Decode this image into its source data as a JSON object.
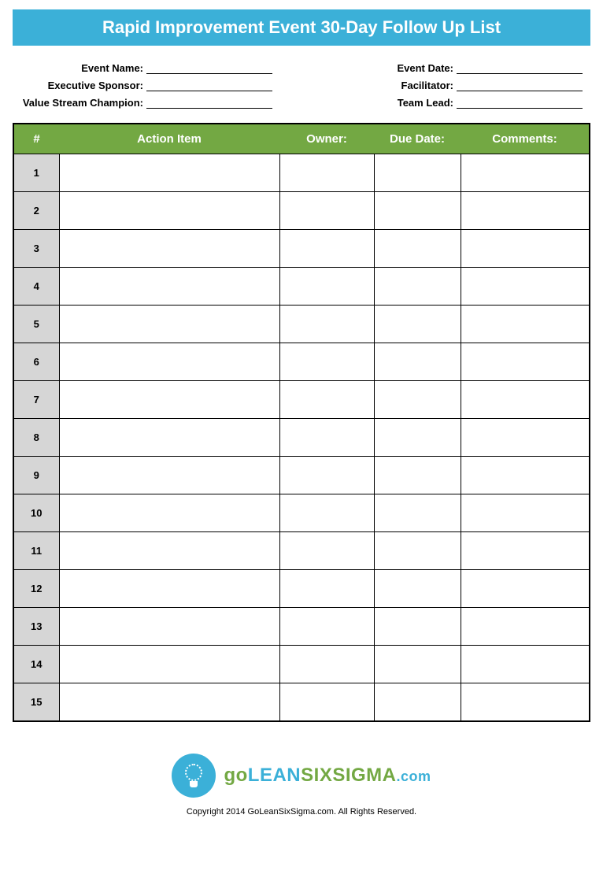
{
  "title": "Rapid Improvement Event 30-Day Follow Up List",
  "meta": {
    "left": [
      {
        "label": "Event Name:",
        "value": ""
      },
      {
        "label": "Executive Sponsor:",
        "value": ""
      },
      {
        "label": "Value Stream Champion:",
        "value": ""
      }
    ],
    "right": [
      {
        "label": "Event Date:",
        "value": ""
      },
      {
        "label": "Facilitator:",
        "value": ""
      },
      {
        "label": "Team Lead:",
        "value": ""
      }
    ]
  },
  "table": {
    "columns": [
      "#",
      "Action Item",
      "Owner:",
      "Due Date:",
      "Comments:"
    ],
    "rows": [
      {
        "num": "1",
        "action": "",
        "owner": "",
        "due": "",
        "comments": ""
      },
      {
        "num": "2",
        "action": "",
        "owner": "",
        "due": "",
        "comments": ""
      },
      {
        "num": "3",
        "action": "",
        "owner": "",
        "due": "",
        "comments": ""
      },
      {
        "num": "4",
        "action": "",
        "owner": "",
        "due": "",
        "comments": ""
      },
      {
        "num": "5",
        "action": "",
        "owner": "",
        "due": "",
        "comments": ""
      },
      {
        "num": "6",
        "action": "",
        "owner": "",
        "due": "",
        "comments": ""
      },
      {
        "num": "7",
        "action": "",
        "owner": "",
        "due": "",
        "comments": ""
      },
      {
        "num": "8",
        "action": "",
        "owner": "",
        "due": "",
        "comments": ""
      },
      {
        "num": "9",
        "action": "",
        "owner": "",
        "due": "",
        "comments": ""
      },
      {
        "num": "10",
        "action": "",
        "owner": "",
        "due": "",
        "comments": ""
      },
      {
        "num": "11",
        "action": "",
        "owner": "",
        "due": "",
        "comments": ""
      },
      {
        "num": "12",
        "action": "",
        "owner": "",
        "due": "",
        "comments": ""
      },
      {
        "num": "13",
        "action": "",
        "owner": "",
        "due": "",
        "comments": ""
      },
      {
        "num": "14",
        "action": "",
        "owner": "",
        "due": "",
        "comments": ""
      },
      {
        "num": "15",
        "action": "",
        "owner": "",
        "due": "",
        "comments": ""
      }
    ],
    "header_bg": "#73a843",
    "header_fg": "#ffffff",
    "numcell_bg": "#d6d6d6",
    "border_color": "#000000"
  },
  "logo": {
    "parts": {
      "go": "go",
      "lean": "LEAN",
      "six": "SIXSIGMA",
      "com": ".com"
    },
    "circle_color": "#3bb0d8"
  },
  "copyright": "Copyright 2014 GoLeanSixSigma.com. All Rights Reserved.",
  "colors": {
    "title_bg": "#3bb0d8",
    "title_fg": "#ffffff",
    "green": "#73a843",
    "blue": "#3bb0d8"
  }
}
